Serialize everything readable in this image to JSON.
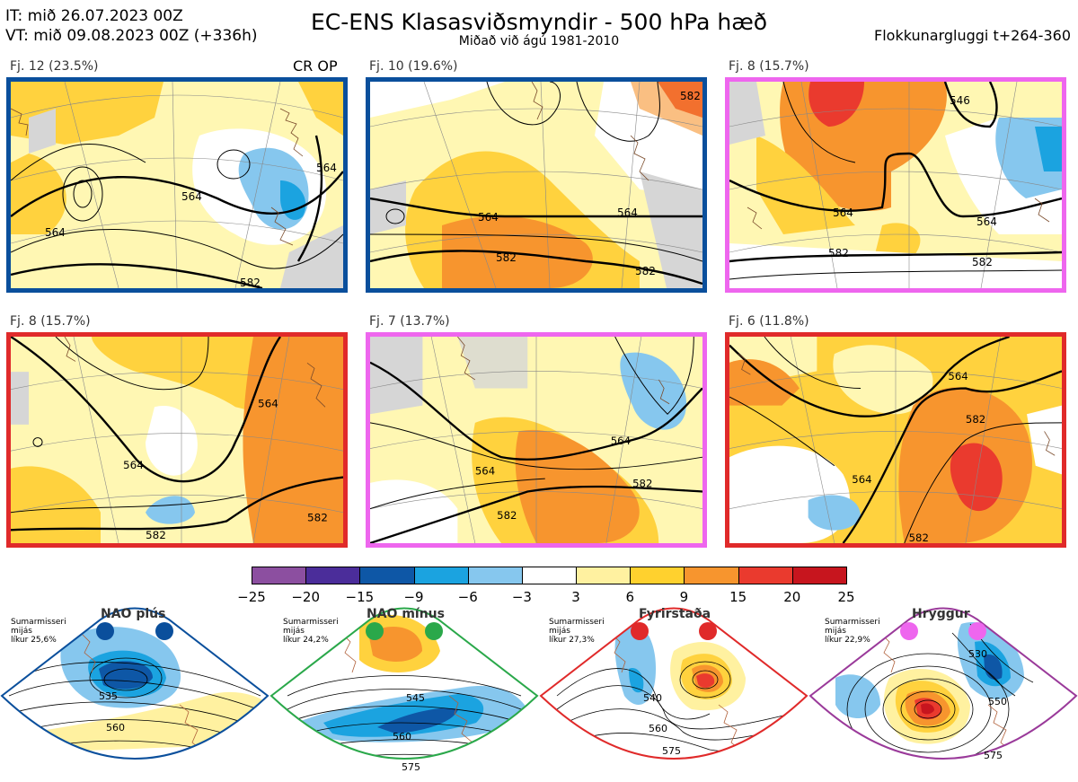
{
  "header": {
    "it_line": "IT: mið 26.07.2023 00Z",
    "vt_line": "VT: mið 09.08.2023 00Z  (+336h)",
    "title": "EC-ENS Klasasviðsmyndir - 500 hPa hæð",
    "subtitle": "Miðað við ágú 1981-2010",
    "window": "Flokkunargluggi t+264-360"
  },
  "panels": [
    {
      "label": "Fj. 12 (23.5%)",
      "tag": "CR OP",
      "frame_color": "#0a4f9c",
      "contours": [
        "564",
        "564",
        "564",
        "582"
      ]
    },
    {
      "label": "Fj. 10 (19.6%)",
      "tag": "",
      "frame_color": "#0a4f9c",
      "contours": [
        "564",
        "582",
        "582",
        "582",
        "564"
      ]
    },
    {
      "label": "Fj. 8 (15.7%)",
      "tag": "",
      "frame_color": "#ee66ee",
      "contours": [
        "564",
        "564",
        "582",
        "582",
        "546"
      ]
    },
    {
      "label": "Fj. 8 (15.7%)",
      "tag": "",
      "frame_color": "#e02a2a",
      "contours": [
        "564",
        "564",
        "582",
        "582"
      ]
    },
    {
      "label": "Fj. 7 (13.7%)",
      "tag": "",
      "frame_color": "#ee66ee",
      "contours": [
        "564",
        "564",
        "582",
        "582"
      ]
    },
    {
      "label": "Fj. 6 (11.8%)",
      "tag": "",
      "frame_color": "#e02a2a",
      "contours": [
        "564",
        "564",
        "582",
        "582"
      ]
    }
  ],
  "colorbar": {
    "colors": [
      "#8c4fa0",
      "#4b2d9a",
      "#0e57a6",
      "#1ba3e0",
      "#86c7ee",
      "#ffffff",
      "#fff1a0",
      "#ffd12e",
      "#f7952e",
      "#ea3a2e",
      "#c7151e"
    ],
    "labels": [
      "−25",
      "−20",
      "−15",
      "−9",
      "−6",
      "−3",
      "3",
      "6",
      "9",
      "15",
      "20",
      "25"
    ]
  },
  "regimes": [
    {
      "name": "NAO plús",
      "info": "Sumarmisseri\nmijás\nlíkur 25,6%",
      "color": "#0a4f9c",
      "contours": [
        "535",
        "560"
      ]
    },
    {
      "name": "NAO mínus",
      "info": "Sumarmisseri\nmijás\nlíkur 24,2%",
      "color": "#2aa84a",
      "contours": [
        "545",
        "560",
        "575"
      ]
    },
    {
      "name": "Fyrirstaða",
      "info": "Sumarmisseri\nmijás\nlíkur 27,3%",
      "color": "#e02a2a",
      "contours": [
        "540",
        "560",
        "575"
      ]
    },
    {
      "name": "Hryggur",
      "info": "Sumarmisseri\nmijás\nlíkur 22,9%",
      "color": "#9a3a9a",
      "dot_color": "#ee66ee",
      "contours": [
        "530",
        "550",
        "575"
      ]
    }
  ]
}
